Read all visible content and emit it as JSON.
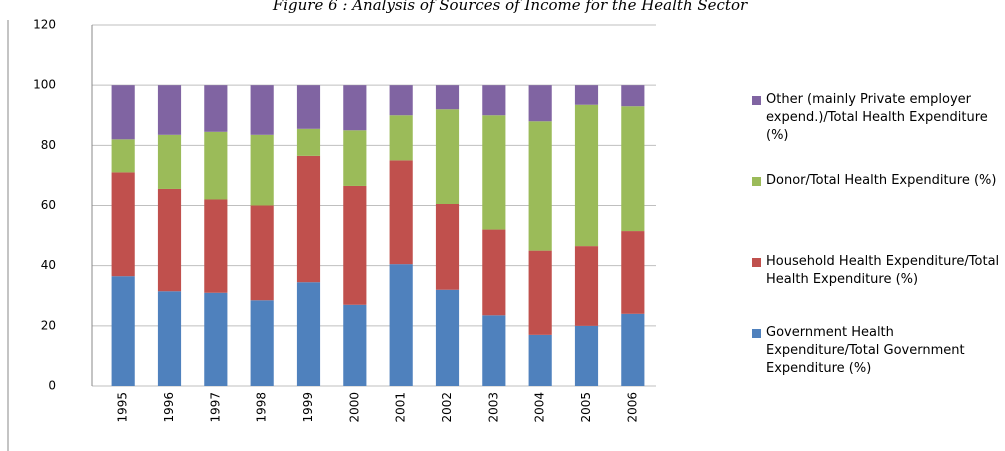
{
  "chart_data": {
    "type": "stacked_bar",
    "title": "Figure 6 : Analysis of Sources of Income for the Health Sector",
    "categories": [
      "1995",
      "1996",
      "1997",
      "1998",
      "1999",
      "2000",
      "2001",
      "2002",
      "2003",
      "2004",
      "2005",
      "2006"
    ],
    "series": [
      {
        "name": "Government Health Expenditure/Total Government Expenditure (%)",
        "color": "#4f81bd",
        "values": [
          36.5,
          31.5,
          31,
          28.5,
          34.5,
          27,
          40.5,
          32,
          23.5,
          17,
          20,
          24
        ]
      },
      {
        "name": "Household Health Expenditure/Total Health Expenditure (%)",
        "color": "#c0504d",
        "values": [
          34.5,
          34,
          31,
          31.5,
          42,
          39.5,
          34.5,
          28.5,
          28.5,
          28,
          26.5,
          27.5
        ]
      },
      {
        "name": "Donor/Total Health Expenditure (%)",
        "color": "#9bbb59",
        "values": [
          11,
          18,
          22.5,
          23.5,
          9,
          18.5,
          15,
          31.5,
          38,
          43,
          47,
          41.5
        ]
      },
      {
        "name": "Other (mainly Private employer expend.)/Total Health Expenditure (%)",
        "color": "#8064a2",
        "values": [
          18,
          16.5,
          15.5,
          16.5,
          14.5,
          15,
          10,
          8,
          10,
          12,
          6.5,
          7
        ]
      }
    ],
    "ylim": [
      0,
      120
    ],
    "yticks": [
      0,
      20,
      40,
      60,
      80,
      100,
      120
    ],
    "grid": true
  }
}
